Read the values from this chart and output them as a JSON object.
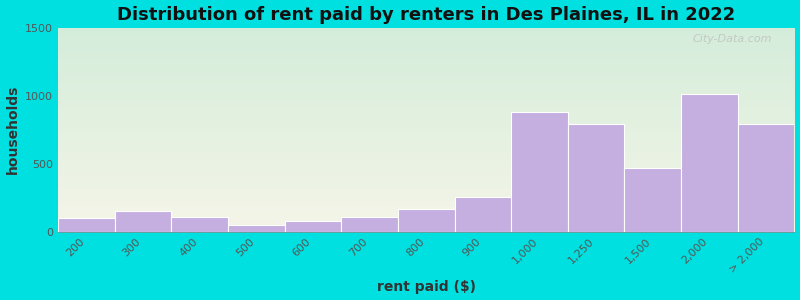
{
  "title": "Distribution of rent paid by renters in Des Plaines, IL in 2022",
  "xlabel": "rent paid ($)",
  "ylabel": "households",
  "categories": [
    "200",
    "300",
    "400",
    "500",
    "600",
    "700",
    "800",
    "900",
    "1,000",
    "1,250",
    "1,500",
    "2,000",
    "> 2,000"
  ],
  "values": [
    100,
    150,
    110,
    50,
    75,
    110,
    165,
    255,
    880,
    790,
    470,
    1010,
    790
  ],
  "bar_color": "#c5aee0",
  "bar_edgecolor": "#ffffff",
  "bg_color_topleft": "#d4edda",
  "bg_color_bottomright": "#f5f5e8",
  "outer_bg": "#00e0e0",
  "ylim": [
    0,
    1500
  ],
  "yticks": [
    0,
    500,
    1000,
    1500
  ],
  "title_fontsize": 13,
  "axis_label_fontsize": 10,
  "tick_fontsize": 8,
  "watermark": "City-Data.com"
}
